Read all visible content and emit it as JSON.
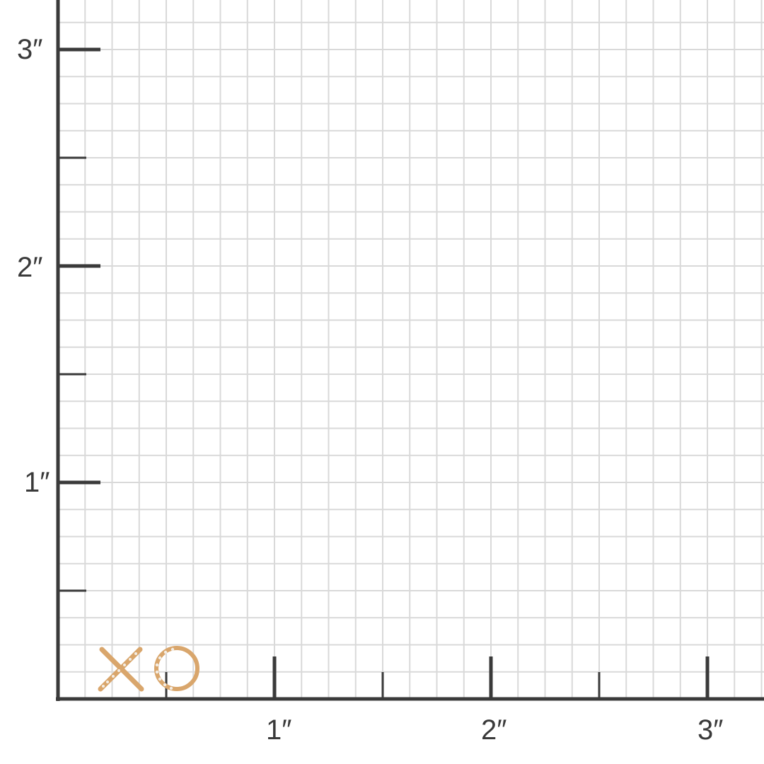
{
  "ruler": {
    "unit_symbol": "″",
    "x_labels": [
      "1″",
      "2″",
      "3″"
    ],
    "y_labels": [
      "1″",
      "2″",
      "3″"
    ],
    "subdivisions_per_inch": 8,
    "colors": {
      "axis": "#3a3a3a",
      "grid": "#d9d9d9",
      "gold": "#d9a66c",
      "diamond": "#f3ede4"
    }
  },
  "product": {
    "letters": [
      "X",
      "O"
    ]
  }
}
